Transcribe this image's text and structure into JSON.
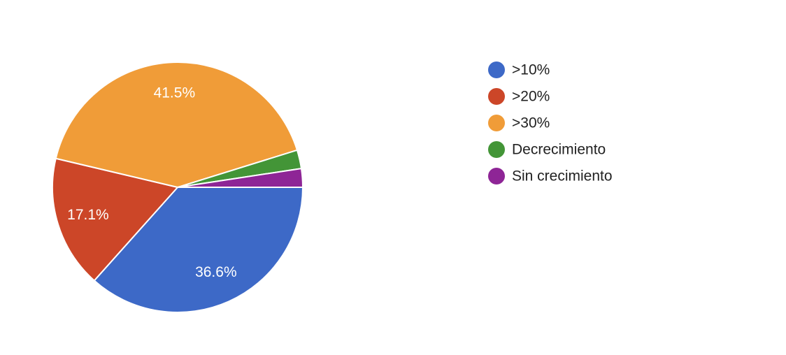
{
  "chart_data": {
    "type": "pie",
    "categories": [
      ">10%",
      ">20%",
      ">30%",
      "Decrecimiento",
      "Sin crecimiento"
    ],
    "values": [
      36.6,
      17.1,
      41.5,
      2.4,
      2.4
    ],
    "value_labels": [
      "36.6%",
      "17.1%",
      "41.5%",
      null,
      null
    ],
    "colors": [
      "#3d69c7",
      "#cc4628",
      "#f09c38",
      "#439537",
      "#8e2596"
    ],
    "legend": "right"
  }
}
